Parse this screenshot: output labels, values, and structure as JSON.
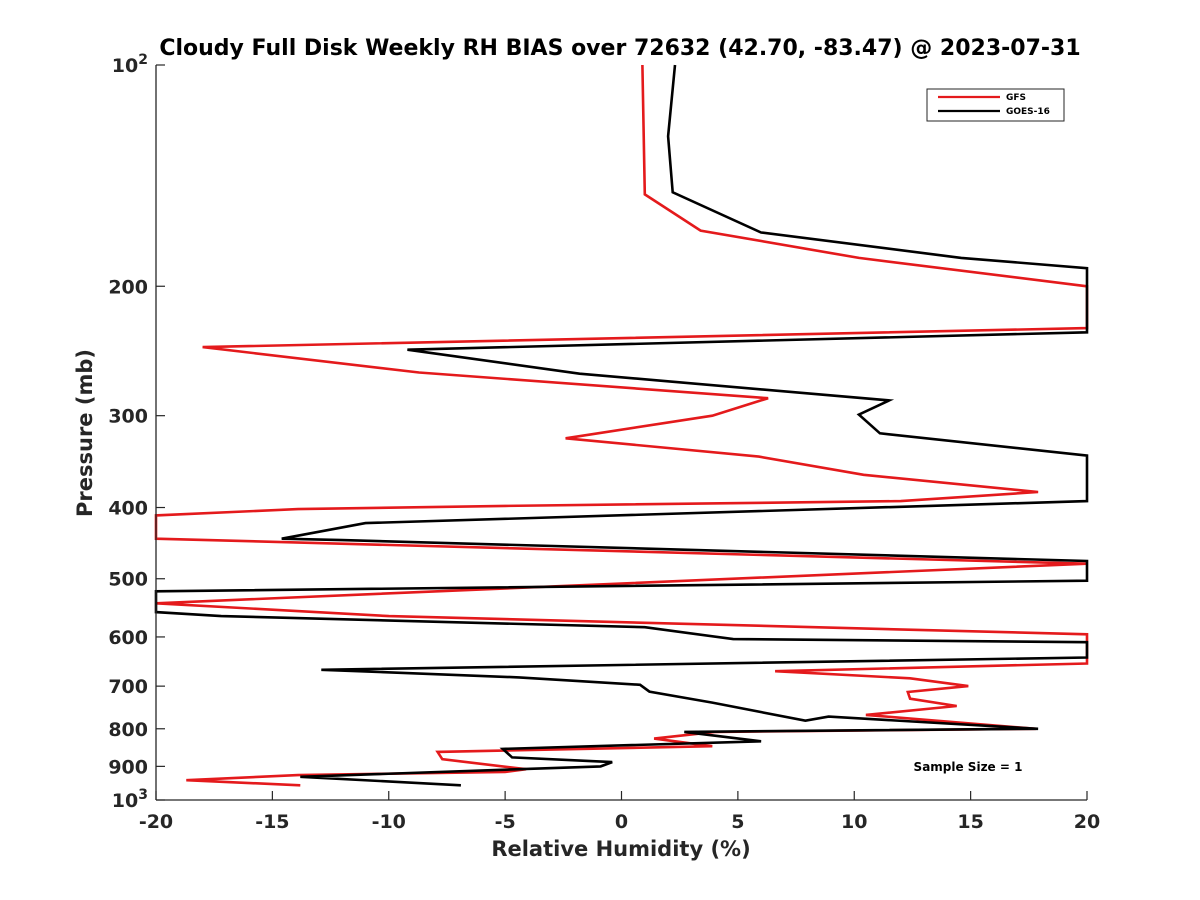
{
  "chart_data": {
    "type": "line",
    "title": "Cloudy Full Disk Weekly RH BIAS over 72632 (42.70, -83.47) @ 2023-07-31",
    "xlabel": "Relative Humidity (%)",
    "ylabel": "Pressure (mb)",
    "xlim": [
      -20,
      20
    ],
    "ylim": [
      100,
      1000
    ],
    "yscale": "log",
    "y_reversed": true,
    "grid": false,
    "legend_position": "top-right",
    "x_ticks": [
      -20,
      -15,
      -10,
      -5,
      0,
      5,
      10,
      15,
      20
    ],
    "x_tick_labels": [
      "-20",
      "-15",
      "-10",
      "-5",
      "0",
      "5",
      "10",
      "15",
      "20"
    ],
    "y_ticks": [
      {
        "value": 100,
        "label": "10",
        "sup": "2"
      },
      {
        "value": 200,
        "label": "200",
        "sup": ""
      },
      {
        "value": 300,
        "label": "300",
        "sup": ""
      },
      {
        "value": 400,
        "label": "400",
        "sup": ""
      },
      {
        "value": 500,
        "label": "500",
        "sup": ""
      },
      {
        "value": 600,
        "label": "600",
        "sup": ""
      },
      {
        "value": 700,
        "label": "700",
        "sup": ""
      },
      {
        "value": 800,
        "label": "800",
        "sup": ""
      },
      {
        "value": 900,
        "label": "900",
        "sup": ""
      },
      {
        "value": 1000,
        "label": "10",
        "sup": "3"
      }
    ],
    "annotation": "Sample Size = 1",
    "series": [
      {
        "name": "GFS",
        "color": "#e41a1c",
        "points": [
          [
            0.9,
            100
          ],
          [
            1.0,
            150
          ],
          [
            3.4,
            168
          ],
          [
            10.2,
            183
          ],
          [
            20,
            200
          ],
          [
            20,
            228
          ],
          [
            -18.0,
            242
          ],
          [
            -8.7,
            262
          ],
          [
            6.3,
            284
          ],
          [
            3.9,
            300
          ],
          [
            -2.4,
            322
          ],
          [
            5.9,
            341
          ],
          [
            10.4,
            361
          ],
          [
            17.9,
            381
          ],
          [
            12.0,
            392
          ],
          [
            -5.0,
            398
          ],
          [
            -13.9,
            402
          ],
          [
            -20,
            410
          ],
          [
            -20,
            441
          ],
          [
            20,
            477
          ],
          [
            -20,
            540
          ],
          [
            -10,
            562
          ],
          [
            20,
            595
          ],
          [
            20,
            652
          ],
          [
            6.6,
            668
          ],
          [
            12.4,
            683
          ],
          [
            14.9,
            700
          ],
          [
            12.3,
            713
          ],
          [
            12.4,
            728
          ],
          [
            14.4,
            745
          ],
          [
            10.5,
            766
          ],
          [
            17.8,
            800
          ],
          [
            4.0,
            808
          ],
          [
            1.4,
            825
          ],
          [
            3.9,
            845
          ],
          [
            -7.9,
            860
          ],
          [
            -7.7,
            880
          ],
          [
            -4.1,
            908
          ],
          [
            -5.0,
            916
          ],
          [
            -13.9,
            925
          ],
          [
            -18.7,
            940
          ],
          [
            -13.8,
            955
          ]
        ]
      },
      {
        "name": "GOES-16",
        "color": "#000000",
        "points": [
          [
            2.3,
            100
          ],
          [
            2.0,
            125
          ],
          [
            2.2,
            149
          ],
          [
            6.0,
            169
          ],
          [
            14.6,
            183
          ],
          [
            20,
            189
          ],
          [
            20,
            231
          ],
          [
            -9.2,
            244
          ],
          [
            -1.8,
            263
          ],
          [
            11.5,
            286
          ],
          [
            10.2,
            299
          ],
          [
            11.1,
            317
          ],
          [
            20,
            340
          ],
          [
            20,
            392
          ],
          [
            -11.0,
            420
          ],
          [
            -14.6,
            441
          ],
          [
            -12.0,
            443
          ],
          [
            20,
            473
          ],
          [
            20,
            503
          ],
          [
            -20,
            520
          ],
          [
            -20,
            555
          ],
          [
            -17.2,
            562
          ],
          [
            1.0,
            582
          ],
          [
            4.8,
            604
          ],
          [
            20,
            610
          ],
          [
            20,
            640
          ],
          [
            -12.9,
            665
          ],
          [
            -4.4,
            681
          ],
          [
            0.8,
            697
          ],
          [
            1.2,
            712
          ],
          [
            3.9,
            737
          ],
          [
            7.9,
            780
          ],
          [
            8.9,
            770
          ],
          [
            17.9,
            800
          ],
          [
            2.7,
            808
          ],
          [
            6.0,
            832
          ],
          [
            -5.1,
            852
          ],
          [
            -4.7,
            875
          ],
          [
            -0.4,
            888
          ],
          [
            -0.9,
            900
          ],
          [
            -13.8,
            930
          ],
          [
            -6.9,
            955
          ]
        ]
      }
    ]
  }
}
